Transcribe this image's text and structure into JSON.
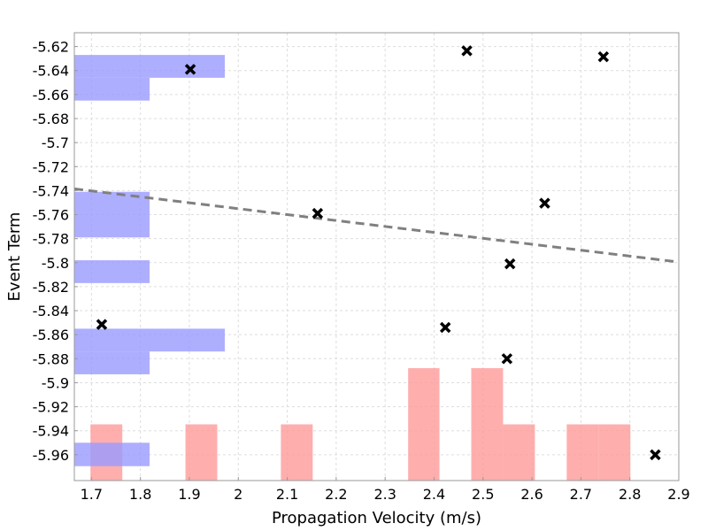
{
  "chart_data": {
    "type": "scatter",
    "title": "",
    "xlabel": "Propagation Velocity (m/s)",
    "ylabel": "Event Term",
    "xlim": [
      1.665,
      2.9
    ],
    "ylim": [
      -5.9815,
      -5.6085
    ],
    "xticks": [
      "1.7",
      "1.8",
      "1.9",
      "2",
      "2.1",
      "2.2",
      "2.3",
      "2.4",
      "2.5",
      "2.6",
      "2.7",
      "2.8",
      "2.9"
    ],
    "yticks": [
      "-5.62",
      "-5.64",
      "-5.66",
      "-5.68",
      "-5.7",
      "-5.72",
      "-5.74",
      "-5.76",
      "-5.78",
      "-5.8",
      "-5.82",
      "-5.84",
      "-5.86",
      "-5.88",
      "-5.9",
      "-5.92",
      "-5.94",
      "-5.96"
    ],
    "grid": true,
    "colors": {
      "points": "#000000",
      "trend": "#808080",
      "x_hist": "#ff9a9a",
      "y_hist": "#9a9aff"
    },
    "points": [
      {
        "x": 1.721,
        "y": -5.8515
      },
      {
        "x": 1.902,
        "y": -5.639
      },
      {
        "x": 2.162,
        "y": -5.759
      },
      {
        "x": 2.423,
        "y": -5.854
      },
      {
        "x": 2.467,
        "y": -5.6235
      },
      {
        "x": 2.549,
        "y": -5.88
      },
      {
        "x": 2.555,
        "y": -5.801
      },
      {
        "x": 2.626,
        "y": -5.7505
      },
      {
        "x": 2.746,
        "y": -5.6285
      },
      {
        "x": 2.852,
        "y": -5.96
      }
    ],
    "trend_line": {
      "x": [
        1.665,
        2.9
      ],
      "y": [
        -5.7385,
        -5.7995
      ]
    },
    "x_histogram": {
      "bin_edges": [
        1.698,
        1.763,
        1.828,
        1.892,
        1.957,
        2.022,
        2.087,
        2.152,
        2.217,
        2.282,
        2.347,
        2.411,
        2.476,
        2.541,
        2.606,
        2.671,
        2.736,
        2.801,
        2.866
      ],
      "counts": [
        1,
        0,
        0,
        1,
        0,
        0,
        1,
        0,
        0,
        0,
        2,
        0,
        2,
        1,
        0,
        1,
        1,
        0
      ],
      "max_count": 2
    },
    "y_histogram": {
      "bin_edges": [
        -5.9695,
        -5.95,
        -5.931,
        -5.912,
        -5.893,
        -5.874,
        -5.855,
        -5.836,
        -5.817,
        -5.798,
        -5.779,
        -5.76,
        -5.741,
        -5.722,
        -5.703,
        -5.684,
        -5.665,
        -5.646,
        -5.627,
        -5.608
      ],
      "counts": [
        1,
        0,
        0,
        0,
        1,
        2,
        0,
        0,
        1,
        0,
        1,
        1,
        0,
        0,
        0,
        0,
        1,
        2,
        0
      ],
      "max_count": 2
    }
  }
}
